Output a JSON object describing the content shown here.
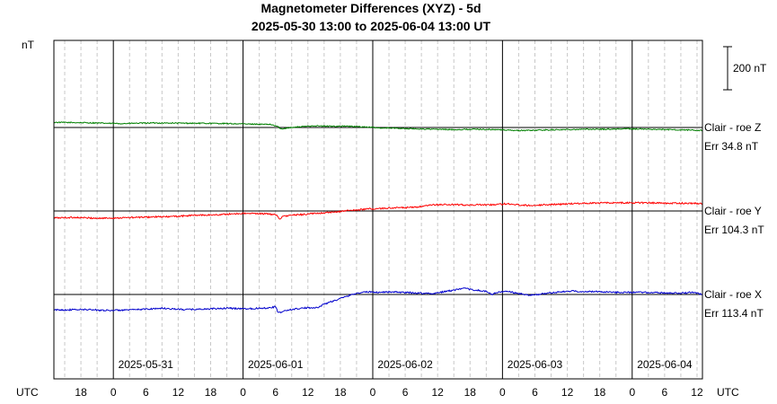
{
  "chart_data": {
    "type": "line",
    "title": "Magnetometer Differences (XYZ) - 5d",
    "subtitle": "2025-05-30 13:00 to 2025-06-04 13:00 UT",
    "ylabel": "nT",
    "scale_bar_label": "200 nT",
    "scale_bar_nT": 200,
    "grid": true,
    "x_unit_label": "UTC",
    "x_range_hours": [
      0,
      120
    ],
    "x_ticks": [
      {
        "h": 5,
        "label": "18"
      },
      {
        "h": 11,
        "label": "0"
      },
      {
        "h": 17,
        "label": "6"
      },
      {
        "h": 23,
        "label": "12"
      },
      {
        "h": 29,
        "label": "18"
      },
      {
        "h": 35,
        "label": "0"
      },
      {
        "h": 41,
        "label": "6"
      },
      {
        "h": 47,
        "label": "12"
      },
      {
        "h": 53,
        "label": "18"
      },
      {
        "h": 59,
        "label": "0"
      },
      {
        "h": 65,
        "label": "6"
      },
      {
        "h": 71,
        "label": "12"
      },
      {
        "h": 77,
        "label": "18"
      },
      {
        "h": 83,
        "label": "0"
      },
      {
        "h": 89,
        "label": "6"
      },
      {
        "h": 95,
        "label": "12"
      },
      {
        "h": 101,
        "label": "18"
      },
      {
        "h": 107,
        "label": "0"
      },
      {
        "h": 113,
        "label": "6"
      },
      {
        "h": 119,
        "label": "12"
      }
    ],
    "day_labels": [
      {
        "h": 17,
        "label": "2025-05-31"
      },
      {
        "h": 41,
        "label": "2025-06-01"
      },
      {
        "h": 65,
        "label": "2025-06-02"
      },
      {
        "h": 89,
        "label": "2025-06-03"
      },
      {
        "h": 113,
        "label": "2025-06-04"
      }
    ],
    "series": [
      {
        "name": "Clair - roe Z",
        "err": "Err 34.8 nT",
        "color": "#008000",
        "baseline_offset_nT": 0,
        "noise_nT": 2.5,
        "points": [
          [
            0,
            24
          ],
          [
            6,
            22
          ],
          [
            12,
            18
          ],
          [
            18,
            21
          ],
          [
            24,
            20
          ],
          [
            30,
            19
          ],
          [
            36,
            16
          ],
          [
            40,
            14
          ],
          [
            41.5,
            4
          ],
          [
            42,
            -8
          ],
          [
            43,
            -2
          ],
          [
            46,
            4
          ],
          [
            48,
            8
          ],
          [
            50,
            6
          ],
          [
            54,
            6
          ],
          [
            58,
            2
          ],
          [
            60,
            -2
          ],
          [
            62,
            -2
          ],
          [
            66,
            -6
          ],
          [
            70,
            -8
          ],
          [
            74,
            -10
          ],
          [
            78,
            -8
          ],
          [
            82,
            -10
          ],
          [
            86,
            -14
          ],
          [
            90,
            -12
          ],
          [
            94,
            -10
          ],
          [
            98,
            -8
          ],
          [
            102,
            -8
          ],
          [
            106,
            -6
          ],
          [
            110,
            -8
          ],
          [
            114,
            -10
          ],
          [
            118,
            -12
          ],
          [
            120,
            -14
          ]
        ]
      },
      {
        "name": "Clair - roe Y",
        "err": "Err 104.3 nT",
        "color": "#ff0000",
        "baseline_offset_nT": 0,
        "noise_nT": 3.5,
        "points": [
          [
            0,
            -32
          ],
          [
            4,
            -30
          ],
          [
            8,
            -34
          ],
          [
            12,
            -32
          ],
          [
            18,
            -28
          ],
          [
            22,
            -26
          ],
          [
            26,
            -20
          ],
          [
            30,
            -18
          ],
          [
            34,
            -12
          ],
          [
            38,
            -12
          ],
          [
            41,
            -16
          ],
          [
            41.8,
            -36
          ],
          [
            42.5,
            -24
          ],
          [
            44,
            -20
          ],
          [
            47,
            -14
          ],
          [
            49,
            -10
          ],
          [
            52,
            -6
          ],
          [
            54,
            2
          ],
          [
            56,
            4
          ],
          [
            58,
            10
          ],
          [
            60,
            10
          ],
          [
            62,
            14
          ],
          [
            66,
            16
          ],
          [
            68,
            20
          ],
          [
            70,
            28
          ],
          [
            72,
            30
          ],
          [
            76,
            28
          ],
          [
            78,
            28
          ],
          [
            82,
            30
          ],
          [
            84,
            34
          ],
          [
            86,
            28
          ],
          [
            88,
            26
          ],
          [
            90,
            28
          ],
          [
            94,
            32
          ],
          [
            98,
            36
          ],
          [
            102,
            38
          ],
          [
            106,
            38
          ],
          [
            110,
            38
          ],
          [
            114,
            36
          ],
          [
            118,
            36
          ],
          [
            120,
            34
          ]
        ]
      },
      {
        "name": "Clair - roe X",
        "err": "Err 113.4 nT",
        "color": "#0000cc",
        "baseline_offset_nT": 0,
        "noise_nT": 3.5,
        "points": [
          [
            0,
            -72
          ],
          [
            6,
            -70
          ],
          [
            10,
            -74
          ],
          [
            14,
            -72
          ],
          [
            20,
            -64
          ],
          [
            24,
            -70
          ],
          [
            28,
            -68
          ],
          [
            32,
            -64
          ],
          [
            36,
            -66
          ],
          [
            40,
            -62
          ],
          [
            41,
            -56
          ],
          [
            41.5,
            -86
          ],
          [
            43,
            -74
          ],
          [
            45,
            -66
          ],
          [
            47,
            -62
          ],
          [
            49,
            -60
          ],
          [
            50,
            -44
          ],
          [
            52,
            -28
          ],
          [
            54,
            -10
          ],
          [
            56,
            6
          ],
          [
            58,
            12
          ],
          [
            60,
            10
          ],
          [
            62,
            12
          ],
          [
            66,
            8
          ],
          [
            70,
            4
          ],
          [
            72,
            12
          ],
          [
            74,
            20
          ],
          [
            76,
            28
          ],
          [
            78,
            20
          ],
          [
            80,
            14
          ],
          [
            81,
            0
          ],
          [
            82,
            10
          ],
          [
            84,
            14
          ],
          [
            86,
            4
          ],
          [
            88,
            -4
          ],
          [
            90,
            2
          ],
          [
            92,
            8
          ],
          [
            94,
            12
          ],
          [
            96,
            16
          ],
          [
            98,
            12
          ],
          [
            100,
            14
          ],
          [
            104,
            10
          ],
          [
            108,
            10
          ],
          [
            112,
            8
          ],
          [
            116,
            6
          ],
          [
            118,
            10
          ],
          [
            120,
            0
          ]
        ]
      }
    ]
  }
}
